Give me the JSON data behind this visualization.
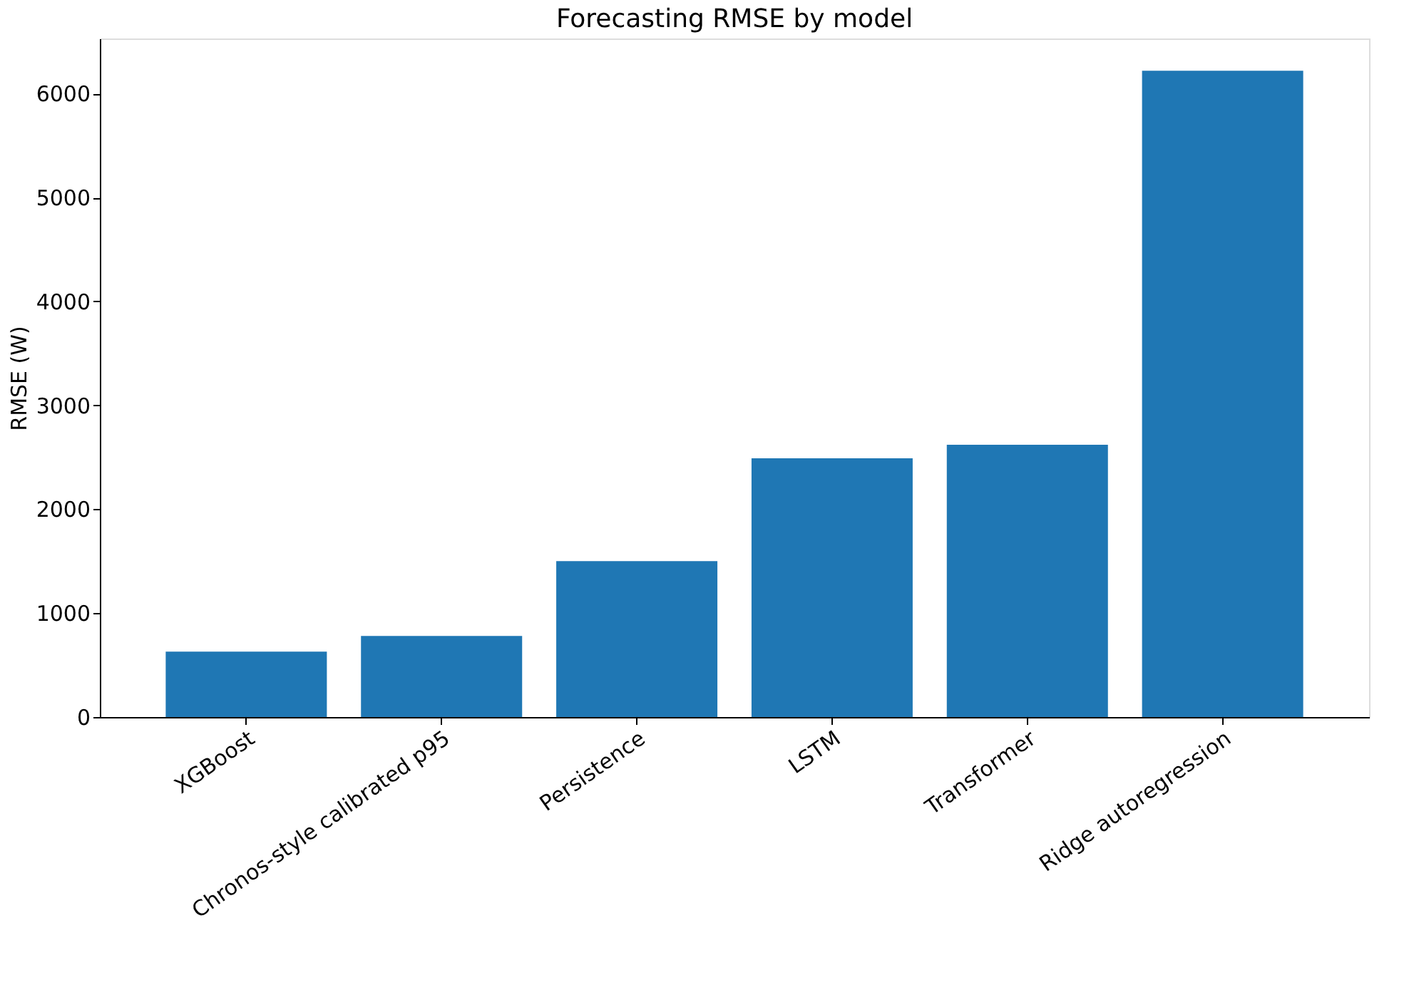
{
  "chart_data": {
    "type": "bar",
    "title": "Forecasting RMSE by model",
    "ylabel": "RMSE (W)",
    "categories": [
      "XGBoost",
      "Chronos-style calibrated p95",
      "Persistence",
      "LSTM",
      "Transformer",
      "Ridge autoregression"
    ],
    "values": [
      630,
      780,
      1500,
      2490,
      2620,
      6220
    ],
    "color": "#1f77b4",
    "ylim": [
      0,
      6530
    ],
    "yticks": [
      0,
      1000,
      2000,
      3000,
      4000,
      5000,
      6000
    ],
    "grid": false
  }
}
